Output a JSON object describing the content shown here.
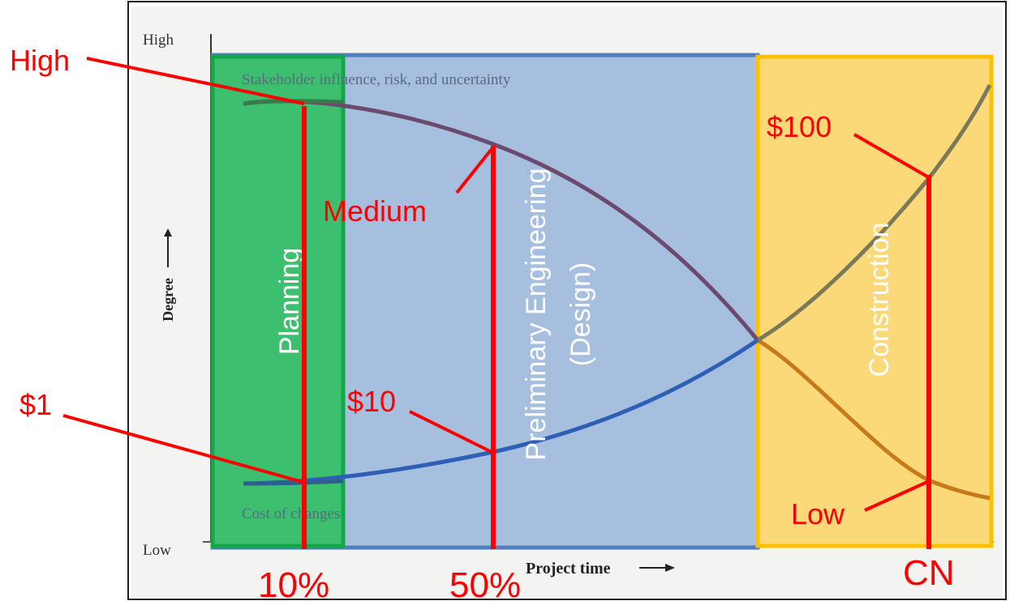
{
  "axis": {
    "y_high": "High",
    "y_low": "Low",
    "y_label": "Degree",
    "x_label": "Project time"
  },
  "curves": {
    "upper_label": "Stakeholder influence, risk, and uncertainty",
    "lower_label": "Cost of changes"
  },
  "phases": [
    {
      "label": "Planning",
      "color": "#22b14c"
    },
    {
      "label": "Preliminary Engineering",
      "label2": "(Design)",
      "color": "#4f7fbf"
    },
    {
      "label": "Construction",
      "color": "#ffc000"
    }
  ],
  "markers": {
    "planning_pct": "10%",
    "design_pct": "50%",
    "construction": "CN"
  },
  "annotations": {
    "high": "High",
    "medium": "Medium",
    "low": "Low",
    "cost_1": "$1",
    "cost_10": "$10",
    "cost_100": "$100"
  },
  "colors": {
    "annotation": "#ff0000",
    "upper_curve": "#6b4a6e",
    "lower_curve": "#2e5fb5",
    "construction_upper": "#7a7a5a",
    "construction_lower": "#c77a1a"
  }
}
